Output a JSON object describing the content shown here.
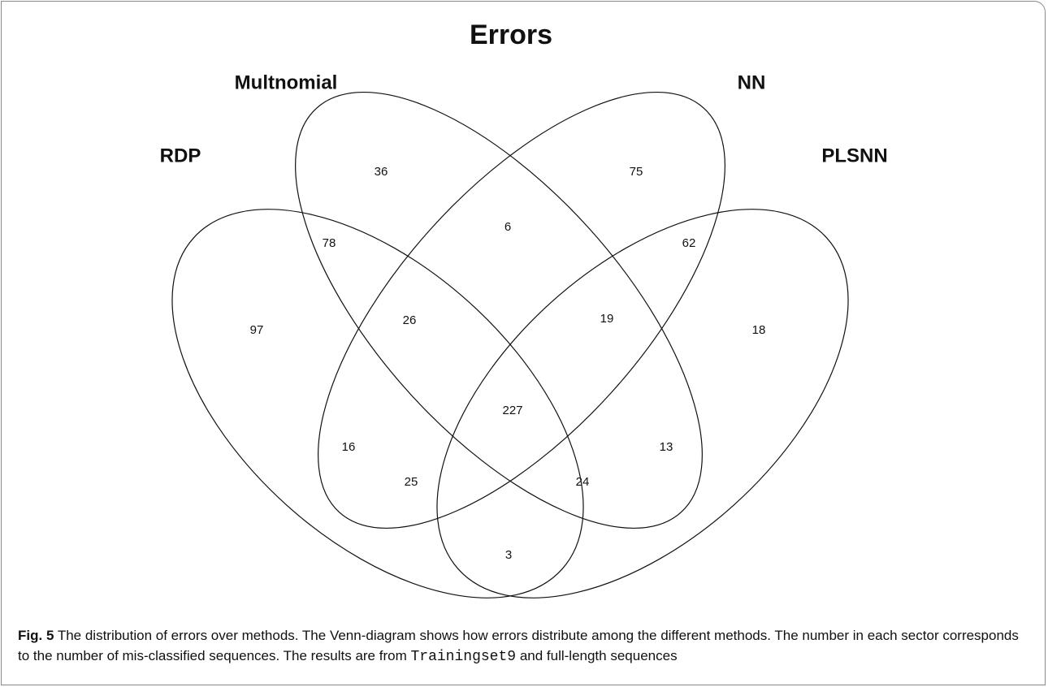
{
  "figure": {
    "title": "Errors",
    "sets": [
      "Multnomial",
      "NN",
      "RDP",
      "PLSNN"
    ],
    "regions": [
      36,
      75,
      78,
      6,
      62,
      97,
      26,
      19,
      18,
      227,
      16,
      13,
      25,
      24,
      3
    ]
  },
  "caption": {
    "label": "Fig. 5",
    "text": " The distribution of errors over methods. The Venn-diagram shows how errors distribute among the different methods. The number in each sector corresponds to the number of mis-classified sequences. The results are from ",
    "code": "Trainingset9",
    "tail": " and full-length sequences"
  }
}
